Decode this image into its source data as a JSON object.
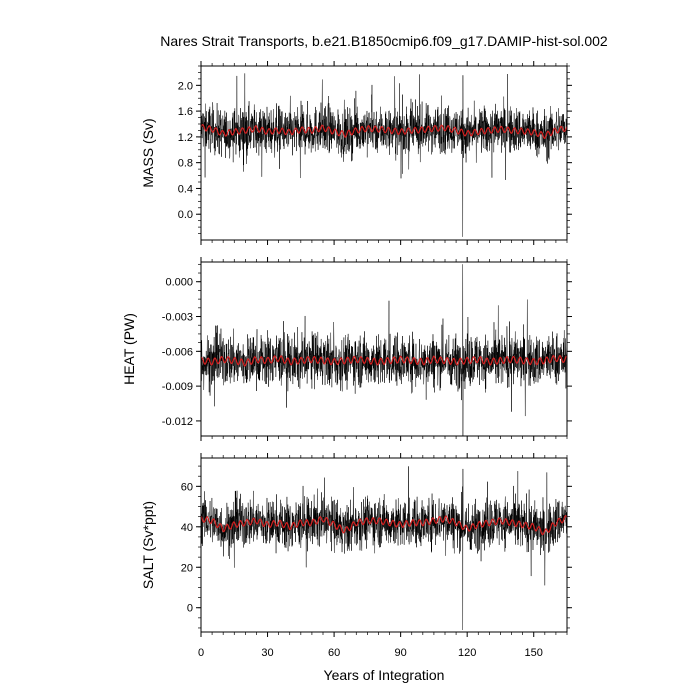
{
  "figure": {
    "title": "Nares Strait Transports, b.e21.B1850cmip6.f09_g17.DAMIP-hist-sol.002",
    "xlabel": "Years of Integration"
  },
  "chart_data": [
    {
      "type": "line",
      "title": "Nares Strait Transports, b.e21.B1850cmip6.f09_g17.DAMIP-hist-sol.002",
      "xlabel": "",
      "ylabel": "MASS (Sv)",
      "xlim": [
        0,
        165
      ],
      "ylim": [
        -0.4,
        2.3
      ],
      "yticks": [
        0.0,
        0.4,
        0.8,
        1.2,
        1.6,
        2.0
      ],
      "ytick_labels": [
        "0.0",
        "0.4",
        "0.8",
        "1.2",
        "1.6",
        "2.0"
      ],
      "grid": false,
      "series": [
        {
          "role": "monthly",
          "color": "#000000",
          "mean": 1.3,
          "spread": 0.18,
          "min": -0.35,
          "max": 2.2
        },
        {
          "role": "annual-mean",
          "color": "#d62020",
          "x": [
            0,
            5,
            10,
            15,
            20,
            25,
            30,
            35,
            40,
            45,
            50,
            55,
            60,
            65,
            70,
            75,
            80,
            85,
            90,
            95,
            100,
            105,
            110,
            115,
            120,
            125,
            130,
            135,
            140,
            145,
            150,
            155,
            160,
            164
          ],
          "y": [
            1.35,
            1.32,
            1.25,
            1.28,
            1.3,
            1.33,
            1.28,
            1.3,
            1.27,
            1.31,
            1.3,
            1.34,
            1.28,
            1.24,
            1.3,
            1.33,
            1.32,
            1.3,
            1.28,
            1.3,
            1.31,
            1.33,
            1.34,
            1.3,
            1.25,
            1.28,
            1.3,
            1.32,
            1.3,
            1.29,
            1.27,
            1.22,
            1.3,
            1.33
          ]
        }
      ]
    },
    {
      "type": "line",
      "xlabel": "",
      "ylabel": "HEAT (PW)",
      "xlim": [
        0,
        165
      ],
      "ylim": [
        -0.0133,
        0.0017
      ],
      "yticks": [
        0.0,
        -0.003,
        -0.006,
        -0.009,
        -0.012
      ],
      "ytick_labels": [
        "0.000",
        "-0.003",
        "-0.006",
        "-0.009",
        "-0.012"
      ],
      "grid": false,
      "series": [
        {
          "role": "monthly",
          "color": "#000000",
          "mean": -0.0068,
          "spread": 0.0011,
          "min": -0.0135,
          "max": 0.0015
        },
        {
          "role": "annual-mean",
          "color": "#d62020",
          "x": [
            0,
            5,
            10,
            15,
            20,
            25,
            30,
            35,
            40,
            45,
            50,
            55,
            60,
            65,
            70,
            75,
            80,
            85,
            90,
            95,
            100,
            105,
            110,
            115,
            120,
            125,
            130,
            135,
            140,
            145,
            150,
            155,
            160,
            164
          ],
          "y": [
            -0.0068,
            -0.0069,
            -0.0067,
            -0.0068,
            -0.007,
            -0.0067,
            -0.0068,
            -0.0066,
            -0.0069,
            -0.0068,
            -0.0067,
            -0.0068,
            -0.0069,
            -0.0068,
            -0.0067,
            -0.0068,
            -0.0069,
            -0.0068,
            -0.0067,
            -0.0068,
            -0.0069,
            -0.0067,
            -0.0068,
            -0.0069,
            -0.0068,
            -0.0067,
            -0.0069,
            -0.0068,
            -0.0067,
            -0.0068,
            -0.0069,
            -0.0068,
            -0.0066,
            -0.0067
          ]
        }
      ]
    },
    {
      "type": "line",
      "xlabel": "Years of Integration",
      "ylabel": "SALT (Sv*ppt)",
      "xlim": [
        0,
        165
      ],
      "ylim": [
        -12,
        74
      ],
      "yticks": [
        0,
        20,
        40,
        60
      ],
      "ytick_labels": [
        "0",
        "20",
        "40",
        "60"
      ],
      "xticks": [
        0,
        30,
        60,
        90,
        120,
        150
      ],
      "xtick_labels": [
        "0",
        "30",
        "60",
        "90",
        "120",
        "150"
      ],
      "grid": false,
      "series": [
        {
          "role": "monthly",
          "color": "#000000",
          "mean": 42,
          "spread": 6,
          "min": -11,
          "max": 70
        },
        {
          "role": "annual-mean",
          "color": "#d62020",
          "x": [
            0,
            5,
            10,
            15,
            20,
            25,
            30,
            35,
            40,
            45,
            50,
            55,
            60,
            65,
            70,
            75,
            80,
            85,
            90,
            95,
            100,
            105,
            110,
            115,
            120,
            125,
            130,
            135,
            140,
            145,
            150,
            155,
            160,
            164
          ],
          "y": [
            44,
            43,
            39,
            41,
            42,
            43,
            41,
            42,
            40,
            42,
            42,
            44,
            41,
            38,
            42,
            43,
            43,
            42,
            41,
            42,
            42,
            43,
            44,
            42,
            39,
            41,
            42,
            43,
            42,
            41,
            40,
            37,
            42,
            44
          ]
        }
      ]
    }
  ]
}
